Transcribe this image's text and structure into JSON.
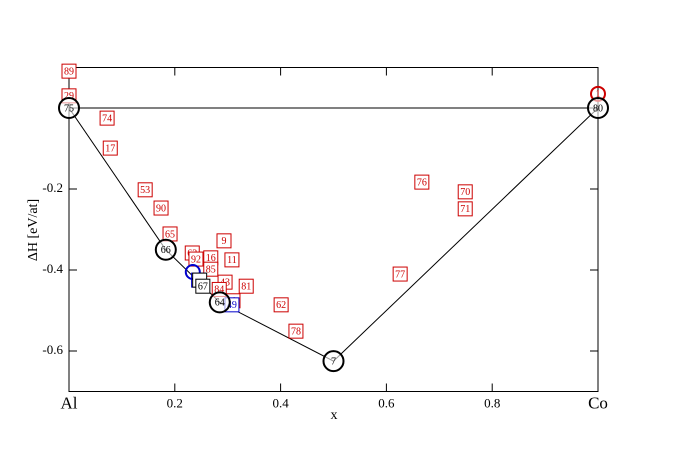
{
  "chart_data": {
    "type": "scatter",
    "xlabel": "x",
    "ylabel": "ΔH [eV/at]",
    "xlim": [
      0,
      1
    ],
    "ylim": [
      -0.7,
      0.1
    ],
    "xticks": [
      {
        "value": 0,
        "label": "Al"
      },
      0.2,
      0.4,
      0.6,
      0.8,
      {
        "value": 1,
        "label": "Co"
      }
    ],
    "yticks": [
      -0.6,
      -0.4,
      -0.2
    ],
    "series": [
      {
        "marker": "square",
        "color": "#cc0000",
        "x": [
          0,
          0,
          0.072,
          0.078,
          0.144,
          0.174,
          0.191,
          0.293,
          0.233,
          0.24,
          0.268,
          0.308,
          0.268,
          0.295,
          0.335,
          0.284,
          0.31,
          0.401,
          0.429,
          0.626,
          0.667,
          0.749,
          0.749
        ],
        "values": [
          0.091,
          0.03,
          -0.025,
          -0.099,
          -0.202,
          -0.247,
          -0.311,
          -0.328,
          -0.358,
          -0.373,
          -0.37,
          -0.375,
          -0.398,
          -0.43,
          -0.44,
          -0.448,
          -0.476,
          -0.486,
          -0.551,
          -0.41,
          -0.183,
          -0.207,
          -0.249
        ],
        "point_labels": [
          "89",
          "29",
          "74",
          "17",
          "53",
          "90",
          "65",
          "9",
          "63",
          "92",
          "16",
          "11",
          "85",
          "43",
          "81",
          "84",
          "4",
          "62",
          "78",
          "77",
          "76",
          "70",
          "71"
        ]
      },
      {
        "marker": "circle",
        "color": "#cc0000",
        "x": [
          1
        ],
        "values": [
          0.035
        ],
        "point_labels": [
          "1"
        ]
      },
      {
        "marker": "square",
        "color": "#0000cc",
        "x": [
          0.308,
          0.245
        ],
        "values": [
          -0.486,
          -0.425
        ],
        "point_labels": [
          "49",
          null
        ]
      },
      {
        "marker": "circle",
        "color": "#0000cc",
        "x": [
          0.234
        ],
        "values": [
          -0.405
        ],
        "point_labels": [
          null
        ]
      },
      {
        "marker": "square",
        "color": "#000000",
        "x": [
          0.247,
          0.253
        ],
        "values": [
          -0.425,
          -0.44
        ],
        "point_labels": [
          null,
          "67"
        ]
      },
      {
        "marker": "circle",
        "color": "#000000",
        "hull": true,
        "x": [
          0,
          0.183,
          0.285,
          0.5,
          1
        ],
        "values": [
          0,
          -0.35,
          -0.48,
          -0.625,
          0
        ],
        "point_labels": [
          "75",
          "66",
          "64",
          "7",
          "80"
        ]
      }
    ]
  }
}
